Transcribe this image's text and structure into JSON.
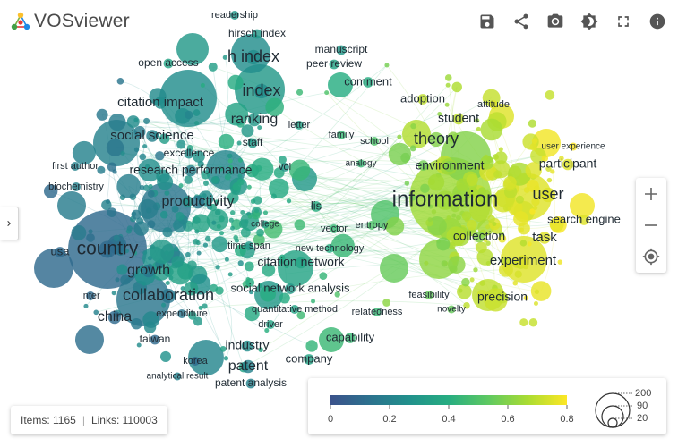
{
  "app": {
    "name": "VOSviewer"
  },
  "toolbar": {
    "buttons": [
      {
        "name": "save-button",
        "icon": "floppy-disk-icon"
      },
      {
        "name": "share-button",
        "icon": "share-icon"
      },
      {
        "name": "screenshot-button",
        "icon": "camera-icon"
      },
      {
        "name": "theme-button",
        "icon": "brightness-icon"
      },
      {
        "name": "fullscreen-button",
        "icon": "fullscreen-icon"
      },
      {
        "name": "info-button",
        "icon": "info-icon"
      }
    ]
  },
  "zoom": {
    "zoom_in": "+",
    "zoom_out": "−",
    "reset_icon": "crosshair-icon"
  },
  "stats": {
    "items": "Items: 1165",
    "links": "Links: 110003"
  },
  "legend": {
    "color_scale": {
      "ticks": [
        "0",
        "0.2",
        "0.4",
        "0.6",
        "0.8"
      ],
      "colors": [
        "#3b528b",
        "#2c728e",
        "#21918c",
        "#27ad81",
        "#5ec962",
        "#aadc32",
        "#fde725"
      ]
    },
    "size_scale": {
      "values": [
        "200",
        "90",
        "20"
      ]
    }
  },
  "network": {
    "labels": [
      {
        "text": "readership",
        "size": 11,
        "score": 0.3
      },
      {
        "text": "hirsch index",
        "size": 12,
        "score": 0.3
      },
      {
        "text": "h index",
        "size": 18,
        "score": 0.25
      },
      {
        "text": "manuscript",
        "size": 12,
        "score": 0.3
      },
      {
        "text": "peer review",
        "size": 12,
        "score": 0.35
      },
      {
        "text": "open access",
        "size": 12,
        "score": 0.35
      },
      {
        "text": "comment",
        "size": 13,
        "score": 0.4
      },
      {
        "text": "index",
        "size": 18,
        "score": 0.25
      },
      {
        "text": "adoption",
        "size": 13,
        "score": 0.7
      },
      {
        "text": "attitude",
        "size": 11,
        "score": 0.75
      },
      {
        "text": "citation impact",
        "size": 15,
        "score": 0.25
      },
      {
        "text": "ranking",
        "size": 16,
        "score": 0.3
      },
      {
        "text": "student",
        "size": 14,
        "score": 0.7
      },
      {
        "text": "letter",
        "size": 11,
        "score": 0.35
      },
      {
        "text": "family",
        "size": 11,
        "score": 0.45
      },
      {
        "text": "theory",
        "size": 18,
        "score": 0.6
      },
      {
        "text": "social science",
        "size": 15,
        "score": 0.2
      },
      {
        "text": "staff",
        "size": 12,
        "score": 0.3
      },
      {
        "text": "school",
        "size": 11,
        "score": 0.5
      },
      {
        "text": "user experience",
        "size": 10,
        "score": 0.8
      },
      {
        "text": "excellence",
        "size": 12,
        "score": 0.25
      },
      {
        "text": "participant",
        "size": 14,
        "score": 0.75
      },
      {
        "text": "first author",
        "size": 11,
        "score": 0.2
      },
      {
        "text": "vol",
        "size": 11,
        "score": 0.3
      },
      {
        "text": "analogy",
        "size": 10,
        "score": 0.45
      },
      {
        "text": "environment",
        "size": 14,
        "score": 0.6
      },
      {
        "text": "research performance",
        "size": 14,
        "score": 0.2
      },
      {
        "text": "biochemistry",
        "size": 11,
        "score": 0.2
      },
      {
        "text": "information",
        "size": 24,
        "score": 0.65
      },
      {
        "text": "user",
        "size": 18,
        "score": 0.75
      },
      {
        "text": "productivity",
        "size": 16,
        "score": 0.15
      },
      {
        "text": "lis",
        "size": 13,
        "score": 0.4
      },
      {
        "text": "search engine",
        "size": 13,
        "score": 0.75
      },
      {
        "text": "college",
        "size": 10,
        "score": 0.35
      },
      {
        "text": "vector",
        "size": 11,
        "score": 0.45
      },
      {
        "text": "entropy",
        "size": 11,
        "score": 0.5
      },
      {
        "text": "collection",
        "size": 14,
        "score": 0.6
      },
      {
        "text": "country",
        "size": 21,
        "score": 0.1
      },
      {
        "text": "task",
        "size": 15,
        "score": 0.75
      },
      {
        "text": "time span",
        "size": 11,
        "score": 0.3
      },
      {
        "text": "new technology",
        "size": 11,
        "score": 0.4
      },
      {
        "text": "usa",
        "size": 13,
        "score": 0.1
      },
      {
        "text": "experiment",
        "size": 15,
        "score": 0.75
      },
      {
        "text": "citation network",
        "size": 14,
        "score": 0.35
      },
      {
        "text": "growth",
        "size": 16,
        "score": 0.15
      },
      {
        "text": "collaboration",
        "size": 18,
        "score": 0.15
      },
      {
        "text": "social network analysis",
        "size": 13,
        "score": 0.3
      },
      {
        "text": "feasibility",
        "size": 11,
        "score": 0.55
      },
      {
        "text": "inter",
        "size": 11,
        "score": 0.1
      },
      {
        "text": "precision",
        "size": 14,
        "score": 0.7
      },
      {
        "text": "quantitative method",
        "size": 11,
        "score": 0.35
      },
      {
        "text": "novelty",
        "size": 10,
        "score": 0.55
      },
      {
        "text": "relatedness",
        "size": 11,
        "score": 0.45
      },
      {
        "text": "china",
        "size": 16,
        "score": 0.1
      },
      {
        "text": "expenditure",
        "size": 11,
        "score": 0.15
      },
      {
        "text": "driver",
        "size": 11,
        "score": 0.35
      },
      {
        "text": "taiwan",
        "size": 12,
        "score": 0.1
      },
      {
        "text": "capability",
        "size": 13,
        "score": 0.45
      },
      {
        "text": "industry",
        "size": 14,
        "score": 0.25
      },
      {
        "text": "company",
        "size": 13,
        "score": 0.35
      },
      {
        "text": "korea",
        "size": 11,
        "score": 0.1
      },
      {
        "text": "patent",
        "size": 16,
        "score": 0.2
      },
      {
        "text": "analytical result",
        "size": 10,
        "score": 0.2
      },
      {
        "text": "patent analysis",
        "size": 12,
        "score": 0.2
      }
    ]
  }
}
